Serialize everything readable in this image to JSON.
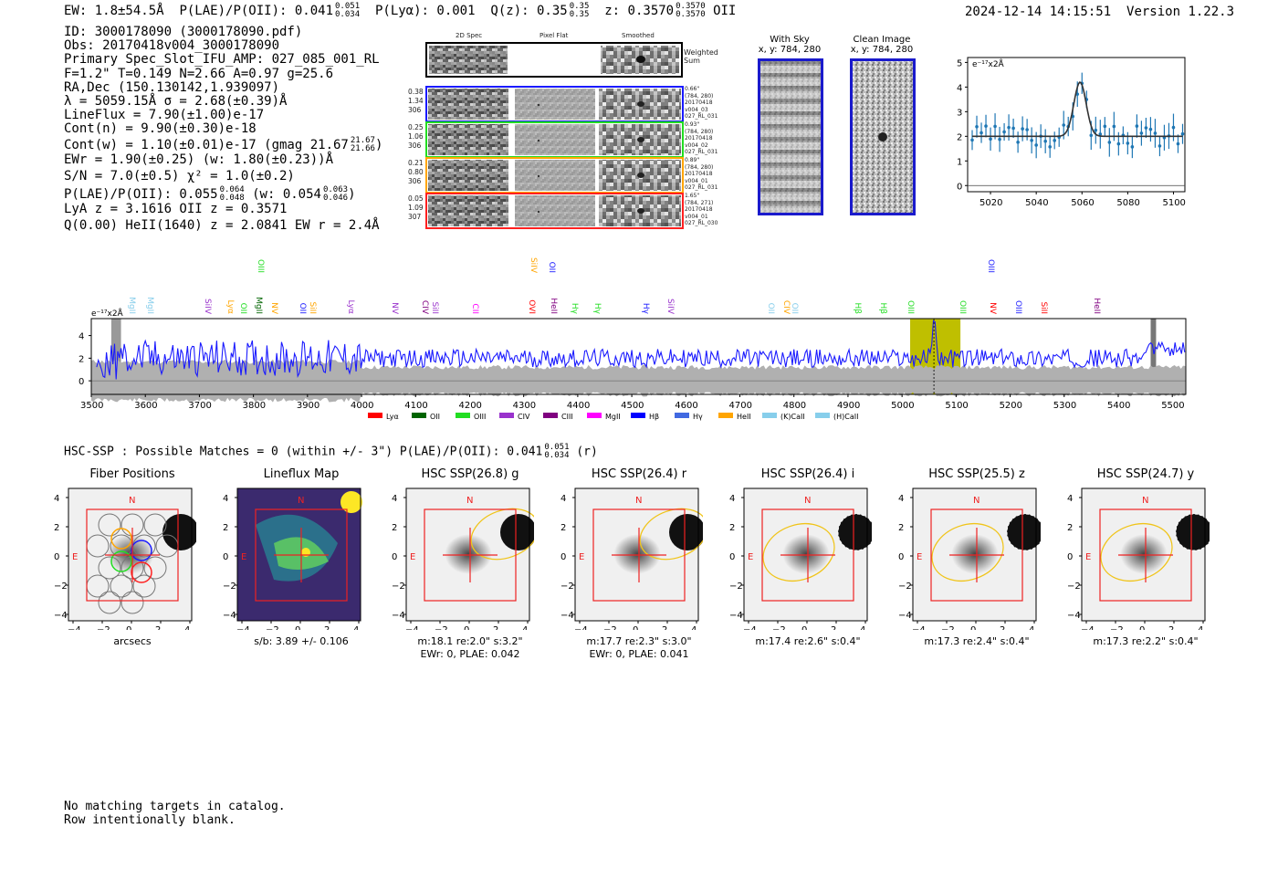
{
  "header": {
    "ew": "EW: 1.8±54.5Å",
    "plae_label": "P(LAE)/P(OII): 0.041",
    "plae_hi": "0.051",
    "plae_lo": "0.034",
    "plya": "P(Lyα): 0.001",
    "qz_label": "Q(z): 0.35",
    "qz_hi": "0.35",
    "qz_lo": "0.35",
    "z_label": "z: 0.3570",
    "z_hi": "0.3570",
    "z_lo": "0.3570",
    "z_line": "OII",
    "datetime": "2024-12-14 14:15:51",
    "version": "Version 1.22.3"
  },
  "info": {
    "id": "ID: 3000178090 (3000178090.pdf)",
    "obs": "Obs: 20170418v004_3000178090",
    "primary": "Primary Spec_Slot_IFU_AMP: 027_085_001_RL",
    "params": "F=1.2\"  T=0.149  N=2.66  A=0.97  g=25.6",
    "radec": "RA,Dec (150.130142,1.939097)",
    "lambda": "λ = 5059.15Å  σ = 2.68(±0.39)Å",
    "lineflux": "LineFlux = 7.90(±1.00)e-17",
    "contn": "Cont(n) = 9.90(±0.30)e-18",
    "contw": "Cont(w) = 1.10(±0.01)e-17 (gmag 21.67",
    "contw_hi": "21.67",
    "contw_lo": "21.66",
    "contw_end": ")",
    "ewr": "EWr = 1.90(±0.25) (w: 1.80(±0.23))Å",
    "sn": "S/N = 7.0(±0.5)  χ² = 1.0(±0.2)",
    "plae": "P(LAE)/P(OII): 0.055",
    "plae_hi": "0.064",
    "plae_lo": "0.048",
    "plae_w": "(w: 0.054",
    "plae_w_hi": "0.063",
    "plae_w_lo": "0.046",
    "plae_end": ")",
    "lya": "LyA z = 3.1616  OII z = 0.3571",
    "q": "Q(0.00) HeII(1640) z = 2.0841  EW r = 2.4Å"
  },
  "cutouts": {
    "col_titles": [
      "2D Spec",
      "Pixel Flat",
      "Smoothed"
    ],
    "weighted_sum": "Weighted Sum",
    "rows": [
      {
        "left": [
          "0.38",
          "1.34",
          "306"
        ],
        "right": [
          "0.66\"",
          "(784, 280)",
          "20170418",
          "v004_03",
          "027_RL_031"
        ],
        "color": "#1a1aff"
      },
      {
        "left": [
          "0.25",
          "1.06",
          "306"
        ],
        "right": [
          "0.93\"",
          "(784, 280)",
          "20170418",
          "v004_02",
          "027_RL_031"
        ],
        "color": "#22dd22"
      },
      {
        "left": [
          "0.21",
          "0.80",
          "306"
        ],
        "right": [
          "0.89\"",
          "(784, 280)",
          "20170418",
          "v004_01",
          "027_RL_031"
        ],
        "color": "#ffa500"
      },
      {
        "left": [
          "0.05",
          "1.09",
          "307"
        ],
        "right": [
          "1.65\"",
          "(784, 271)",
          "20170418",
          "v004_01",
          "027_RL_030"
        ],
        "color": "#ff2020"
      }
    ]
  },
  "sky": {
    "with_sky_title": "With Sky",
    "with_sky_coords": "x, y: 784, 280",
    "clean_title": "Clean Image",
    "clean_coords": "x, y: 784, 280"
  },
  "zoom_plot": {
    "unit": "e⁻¹⁷x2Å",
    "y_ticks": [
      "5",
      "4",
      "3",
      "2",
      "1",
      "0"
    ],
    "x_ticks": [
      "5020",
      "5040",
      "5060",
      "5080",
      "5100"
    ]
  },
  "full_spec": {
    "unit": "e⁻¹⁷x2Å",
    "y_ticks": [
      "4",
      "2",
      "0"
    ],
    "x_ticks": [
      "3500",
      "3600",
      "3700",
      "3800",
      "3900",
      "4000",
      "4100",
      "4200",
      "4300",
      "4400",
      "4500",
      "4600",
      "4700",
      "4800",
      "4900",
      "5000",
      "5100",
      "5200",
      "5300",
      "5400",
      "5500"
    ],
    "line_labels": [
      {
        "t": "MgII",
        "x": 140,
        "c": "#87ceeb"
      },
      {
        "t": "MgII",
        "x": 160,
        "c": "#87ceeb"
      },
      {
        "t": "SiIV",
        "x": 223,
        "c": "#9932cc"
      },
      {
        "t": "Lyα",
        "x": 248,
        "c": "#ffa500"
      },
      {
        "t": "OII",
        "x": 262,
        "c": "#22dd22"
      },
      {
        "t": "MgII",
        "x": 279,
        "c": "#006400"
      },
      {
        "t": "NV",
        "x": 296,
        "c": "#ffa500"
      },
      {
        "t": "OII",
        "x": 327,
        "c": "#1a1aff"
      },
      {
        "t": "SiII",
        "x": 338,
        "c": "#ffa500"
      },
      {
        "t": "Lyα",
        "x": 380,
        "c": "#9932cc"
      },
      {
        "t": "NV",
        "x": 428,
        "c": "#9932cc"
      },
      {
        "t": "CIV",
        "x": 461,
        "c": "#800080"
      },
      {
        "t": "SiII",
        "x": 472,
        "c": "#9932cc"
      },
      {
        "t": "CII",
        "x": 516,
        "c": "#ff00ff"
      },
      {
        "t": "OVI",
        "x": 578,
        "c": "#ff0000"
      },
      {
        "t": "HeII",
        "x": 602,
        "c": "#800080"
      },
      {
        "t": "Hγ",
        "x": 625,
        "c": "#22dd22"
      },
      {
        "t": "Hγ",
        "x": 650,
        "c": "#22dd22"
      },
      {
        "t": "Hγ",
        "x": 703,
        "c": "#1a1aff"
      },
      {
        "t": "SiIV",
        "x": 730,
        "c": "#9932cc"
      },
      {
        "t": "OII",
        "x": 840,
        "c": "#87ceeb"
      },
      {
        "t": "CIV",
        "x": 857,
        "c": "#ffa500"
      },
      {
        "t": "OII",
        "x": 866,
        "c": "#87ceeb"
      },
      {
        "t": "Hβ",
        "x": 935,
        "c": "#22dd22"
      },
      {
        "t": "Hβ",
        "x": 963,
        "c": "#22dd22"
      },
      {
        "t": "OIII",
        "x": 993,
        "c": "#22dd22"
      },
      {
        "t": "OIII",
        "x": 1050,
        "c": "#22dd22"
      },
      {
        "t": "NV",
        "x": 1083,
        "c": "#ff0000"
      },
      {
        "t": "OIII",
        "x": 1111,
        "c": "#1a1aff"
      },
      {
        "t": "SiII",
        "x": 1139,
        "c": "#ff0000"
      },
      {
        "t": "HeII",
        "x": 1197,
        "c": "#800080"
      }
    ],
    "upper_labels": [
      {
        "t": "OIII",
        "x": 281,
        "c": "#22dd22"
      },
      {
        "t": "SiIV",
        "x": 580,
        "c": "#ffa500"
      },
      {
        "t": "OII",
        "x": 600,
        "c": "#1a1aff"
      },
      {
        "t": "OIII",
        "x": 1081,
        "c": "#1a1aff"
      }
    ],
    "legend": [
      {
        "label": "Lyα",
        "color": "#ff0000"
      },
      {
        "label": "OII",
        "color": "#006400"
      },
      {
        "label": "OIII",
        "color": "#22dd22"
      },
      {
        "label": "CIV",
        "color": "#9932cc"
      },
      {
        "label": "CIII",
        "color": "#800080"
      },
      {
        "label": "MgII",
        "color": "#ff00ff"
      },
      {
        "label": "Hβ",
        "color": "#0000ff"
      },
      {
        "label": "Hγ",
        "color": "#4169e1"
      },
      {
        "label": "HeII",
        "color": "#ffa500"
      },
      {
        "label": "(K)CaII",
        "color": "#87ceeb"
      },
      {
        "label": "(H)CaII",
        "color": "#87ceeb"
      }
    ]
  },
  "hsc": {
    "summary": "HSC-SSP : Possible Matches = 0 (within +/- 3\")  P(LAE)/P(OII): 0.041",
    "summary_hi": "0.051",
    "summary_lo": "0.034",
    "summary_end": "(r)",
    "panels": [
      {
        "title": "Fiber Positions",
        "cap1": "arcsecs",
        "cap2": ""
      },
      {
        "title": "Lineflux Map",
        "cap1": "s/b: 3.89 +/- 0.106",
        "cap2": ""
      },
      {
        "title": "HSC SSP(26.8) g",
        "cap1": "m:18.1  re:2.0\"  s:3.2\"",
        "cap2": "EWr: 0, PLAE: 0.042"
      },
      {
        "title": "HSC SSP(26.4) r",
        "cap1": "m:17.7  re:2.3\"  s:3.0\"",
        "cap2": "EWr: 0, PLAE: 0.041"
      },
      {
        "title": "HSC SSP(26.4) i",
        "cap1": "m:17.4  re:2.6\"  s:0.4\"",
        "cap2": ""
      },
      {
        "title": "HSC SSP(25.5) z",
        "cap1": "m:17.3  re:2.4\"  s:0.4\"",
        "cap2": ""
      },
      {
        "title": "HSC SSP(24.7) y",
        "cap1": "m:17.3  re:2.2\"  s:0.4\"",
        "cap2": ""
      }
    ],
    "y_ticks": [
      "4",
      "2",
      "0",
      "−2",
      "−4"
    ],
    "x_ticks": [
      "−4",
      "−2",
      "0",
      "2",
      "4"
    ],
    "n_label": "N",
    "e_label": "E"
  },
  "footer": {
    "line1": "No matching targets in catalog.",
    "line2": "Row intentionally blank."
  }
}
